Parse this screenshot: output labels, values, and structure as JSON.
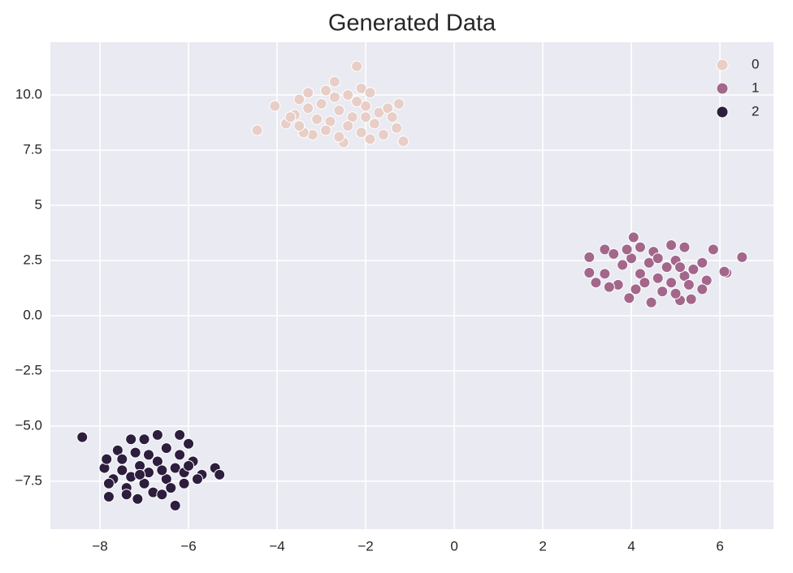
{
  "chart_data": {
    "type": "scatter",
    "title": "Generated Data",
    "xlim": [
      -9.12,
      7.21
    ],
    "ylim": [
      -9.67,
      12.39
    ],
    "xticks": [
      {
        "value": -8,
        "label": "−8"
      },
      {
        "value": -6,
        "label": "−6"
      },
      {
        "value": -4,
        "label": "−4"
      },
      {
        "value": -2,
        "label": "−2"
      },
      0,
      2,
      4,
      6
    ],
    "yticks": [
      {
        "value": -7.5,
        "label": "−7.5"
      },
      {
        "value": -5,
        "label": "−5.0"
      },
      {
        "value": -2.5,
        "label": "−2.5"
      },
      {
        "value": 0,
        "label": "0.0"
      },
      2.5,
      5,
      7.5,
      {
        "value": 10,
        "label": "10.0"
      }
    ],
    "grid": true,
    "legend": "upper right",
    "series": [
      {
        "name": "0",
        "color": "#e8cec6",
        "x": [
          -4.45,
          -2.2,
          -1.15,
          -1.25,
          -4.05,
          -3.8,
          -2.7,
          -3.5,
          -3.3,
          -2.9,
          -2.1,
          -1.9,
          -1.3,
          -1.6,
          -2.5,
          -3.2,
          -3.4,
          -3.6,
          -3.0,
          -2.6,
          -2.3,
          -2.0,
          -1.7,
          -1.5,
          -2.8,
          -2.4,
          -2.1,
          -3.1,
          -3.3,
          -2.7,
          -2.2,
          -1.8,
          -2.9,
          -2.6,
          -3.7,
          -1.4,
          -2.4,
          -1.9,
          -3.5,
          -2.0
        ],
        "values": [
          8.4,
          11.3,
          7.9,
          9.6,
          9.5,
          8.7,
          10.6,
          9.8,
          10.1,
          10.2,
          10.3,
          10.1,
          8.5,
          8.2,
          7.85,
          8.2,
          8.3,
          9.1,
          9.6,
          9.3,
          9.0,
          9.5,
          9.2,
          9.4,
          8.8,
          8.6,
          8.3,
          8.9,
          9.4,
          9.9,
          9.7,
          8.7,
          8.4,
          8.1,
          9.0,
          9.0,
          10.0,
          8.0,
          8.6,
          9.0
        ]
      },
      {
        "name": "1",
        "color": "#a3678b",
        "x": [
          6.5,
          3.05,
          3.05,
          4.05,
          3.95,
          4.45,
          5.35,
          5.1,
          5.85,
          6.15,
          6.1,
          3.4,
          3.2,
          3.4,
          3.6,
          3.8,
          4.0,
          4.2,
          4.4,
          4.6,
          4.8,
          5.0,
          5.2,
          5.4,
          5.6,
          5.7,
          4.1,
          4.3,
          4.7,
          5.0,
          5.3,
          4.5,
          4.9,
          5.2,
          3.9,
          4.2,
          5.6,
          3.7,
          4.6,
          5.1,
          4.9,
          3.5
        ],
        "values": [
          2.65,
          2.65,
          1.95,
          3.55,
          0.8,
          0.6,
          0.75,
          0.7,
          3.0,
          1.95,
          2.0,
          3.0,
          1.5,
          1.9,
          2.8,
          2.3,
          2.6,
          1.9,
          2.4,
          1.7,
          2.2,
          2.5,
          1.8,
          2.1,
          2.4,
          1.6,
          1.2,
          1.5,
          1.1,
          1.0,
          1.4,
          2.9,
          3.2,
          3.1,
          3.0,
          3.1,
          1.2,
          1.4,
          2.6,
          2.2,
          1.5,
          1.3
        ]
      },
      {
        "name": "2",
        "color": "#2d1e3e",
        "x": [
          -8.4,
          -6.3,
          -6.2,
          -6.0,
          -5.4,
          -5.3,
          -7.15,
          -7.8,
          -7.9,
          -7.85,
          -7.6,
          -7.3,
          -7.0,
          -6.7,
          -7.5,
          -7.3,
          -7.1,
          -6.9,
          -6.7,
          -6.5,
          -6.3,
          -6.1,
          -5.9,
          -5.7,
          -7.4,
          -7.0,
          -6.8,
          -6.4,
          -6.1,
          -7.7,
          -7.2,
          -6.9,
          -6.5,
          -6.2,
          -5.8,
          -7.5,
          -6.6,
          -7.1,
          -6.0,
          -7.8,
          -6.6,
          -7.4
        ],
        "values": [
          -5.5,
          -8.6,
          -5.4,
          -5.8,
          -6.9,
          -7.2,
          -8.3,
          -8.2,
          -6.9,
          -6.5,
          -6.1,
          -5.6,
          -5.6,
          -5.4,
          -7.0,
          -7.3,
          -6.8,
          -7.1,
          -6.6,
          -7.4,
          -6.9,
          -7.1,
          -6.6,
          -7.2,
          -7.8,
          -7.6,
          -8.0,
          -7.8,
          -7.6,
          -7.4,
          -6.2,
          -6.3,
          -6.0,
          -6.3,
          -7.4,
          -6.5,
          -7.0,
          -7.2,
          -6.8,
          -7.6,
          -8.1,
          -8.1
        ]
      }
    ]
  }
}
